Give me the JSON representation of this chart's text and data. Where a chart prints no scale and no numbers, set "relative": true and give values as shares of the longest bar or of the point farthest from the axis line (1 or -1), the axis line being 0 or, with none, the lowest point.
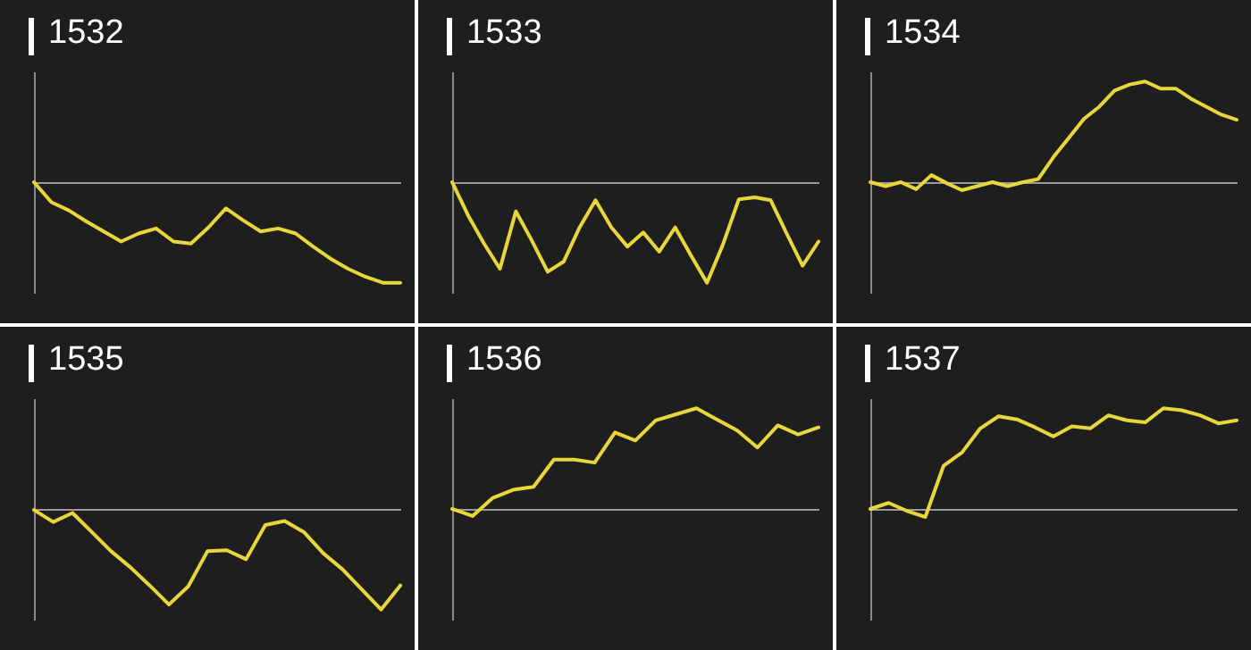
{
  "chart_data": [
    {
      "type": "line",
      "title": "1532",
      "relative": true,
      "categories": [
        null,
        null,
        null,
        null,
        null,
        null,
        null,
        null,
        null,
        null,
        null,
        null,
        null,
        null,
        null,
        null,
        null,
        null,
        null,
        null,
        null,
        null
      ],
      "series": [
        {
          "color": "#e8d63a",
          "values": [
            0,
            -0.2,
            -0.28,
            -0.39,
            -0.49,
            -0.59,
            -0.51,
            -0.46,
            -0.59,
            -0.61,
            -0.45,
            -0.26,
            -0.38,
            -0.49,
            -0.46,
            -0.51,
            -0.64,
            -0.76,
            -0.86,
            -0.94,
            -1,
            -1
          ]
        }
      ]
    },
    {
      "type": "line",
      "title": "1533",
      "relative": true,
      "categories": [
        null,
        null,
        null,
        null,
        null,
        null,
        null,
        null,
        null,
        null,
        null,
        null,
        null,
        null,
        null,
        null,
        null,
        null,
        null,
        null,
        null,
        null,
        null,
        null
      ],
      "series": [
        {
          "color": "#e8d63a",
          "values": [
            0,
            -0.33,
            -0.61,
            -0.86,
            -0.29,
            -0.58,
            -0.89,
            -0.79,
            -0.45,
            -0.18,
            -0.45,
            -0.64,
            -0.5,
            -0.69,
            -0.45,
            -0.73,
            -1,
            -0.62,
            -0.17,
            -0.15,
            -0.18,
            -0.51,
            -0.83,
            -0.59
          ]
        }
      ]
    },
    {
      "type": "line",
      "title": "1534",
      "relative": true,
      "categories": [
        null,
        null,
        null,
        null,
        null,
        null,
        null,
        null,
        null,
        null,
        null,
        null,
        null,
        null,
        null,
        null,
        null,
        null,
        null,
        null,
        null,
        null,
        null,
        null,
        null
      ],
      "series": [
        {
          "color": "#e8d63a",
          "values": [
            0,
            -0.04,
            0,
            -0.07,
            0.07,
            -0.01,
            -0.08,
            -0.04,
            0,
            -0.04,
            0,
            0.03,
            0.25,
            0.44,
            0.63,
            0.75,
            0.91,
            0.97,
            1,
            0.93,
            0.93,
            0.83,
            0.75,
            0.67,
            0.62
          ]
        }
      ]
    },
    {
      "type": "line",
      "title": "1535",
      "relative": true,
      "categories": [
        null,
        null,
        null,
        null,
        null,
        null,
        null,
        null,
        null,
        null,
        null,
        null,
        null,
        null,
        null,
        null,
        null,
        null,
        null,
        null
      ],
      "series": [
        {
          "color": "#e8d63a",
          "values": [
            -0.01,
            -0.13,
            -0.04,
            -0.23,
            -0.42,
            -0.58,
            -0.76,
            -0.95,
            -0.77,
            -0.42,
            -0.41,
            -0.5,
            -0.16,
            -0.12,
            -0.23,
            -0.44,
            -0.6,
            -0.8,
            -1,
            -0.76
          ]
        }
      ]
    },
    {
      "type": "line",
      "title": "1536",
      "relative": true,
      "categories": [
        null,
        null,
        null,
        null,
        null,
        null,
        null,
        null,
        null,
        null,
        null,
        null,
        null,
        null,
        null,
        null,
        null,
        null,
        null
      ],
      "series": [
        {
          "color": "#e8d63a",
          "values": [
            0,
            -0.07,
            0.11,
            0.19,
            0.22,
            0.49,
            0.49,
            0.46,
            0.76,
            0.68,
            0.88,
            0.94,
            1,
            0.89,
            0.78,
            0.61,
            0.83,
            0.74,
            0.81
          ]
        }
      ]
    },
    {
      "type": "line",
      "title": "1537",
      "relative": true,
      "categories": [
        null,
        null,
        null,
        null,
        null,
        null,
        null,
        null,
        null,
        null,
        null,
        null,
        null,
        null,
        null,
        null,
        null,
        null,
        null,
        null,
        null
      ],
      "series": [
        {
          "color": "#e8d63a",
          "values": [
            0,
            0.06,
            -0.02,
            -0.08,
            0.43,
            0.56,
            0.8,
            0.92,
            0.89,
            0.81,
            0.72,
            0.82,
            0.8,
            0.93,
            0.88,
            0.86,
            1,
            0.98,
            0.93,
            0.85,
            0.88
          ]
        }
      ]
    }
  ]
}
